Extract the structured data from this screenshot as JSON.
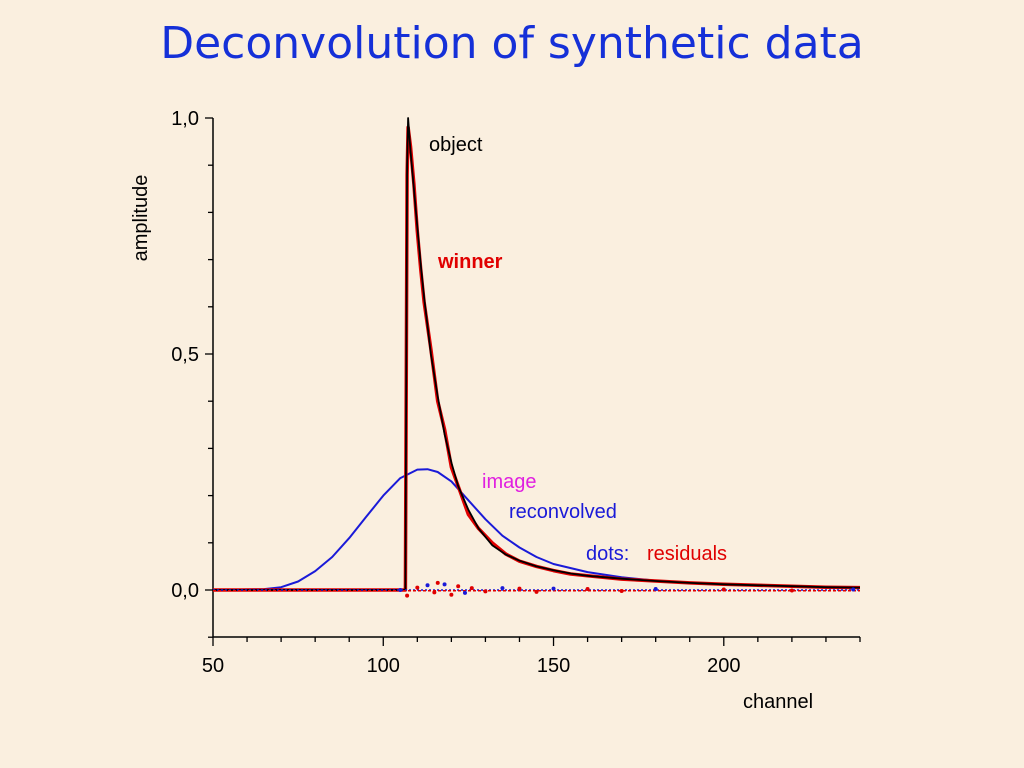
{
  "title": "Deconvolution of synthetic data",
  "chart_data": {
    "type": "line",
    "xlabel": "channel",
    "ylabel": "amplitude",
    "xlim": [
      50,
      240
    ],
    "ylim": [
      -0.1,
      1.0
    ],
    "xticks": [
      "50",
      "100",
      "150",
      "200"
    ],
    "xtick_values": [
      50,
      100,
      150,
      200
    ],
    "yticks": [
      "0,0",
      "0,5",
      "1,0"
    ],
    "ytick_values": [
      0.0,
      0.5,
      1.0
    ],
    "annotations": {
      "object": "object",
      "winner": "winner",
      "image": "image",
      "reconvolved": "reconvolved",
      "dots": "dots:",
      "residuals": "residuals"
    },
    "colors": {
      "object": "#000000",
      "winner": "#e00000",
      "image": "#e020e0",
      "reconvolved": "#1a1ad8",
      "residuals_red": "#e00000",
      "residuals_blue": "#1a1ad8"
    },
    "series": [
      {
        "key": "object",
        "x": [
          50,
          106,
          106.5,
          107,
          107.3,
          108,
          109,
          110,
          111,
          112,
          114,
          116,
          118,
          120,
          122,
          125,
          128,
          132,
          136,
          140,
          145,
          150,
          155,
          160,
          170,
          180,
          190,
          200,
          210,
          220,
          230,
          240
        ],
        "y": [
          0.0,
          0.0,
          0.0,
          0.9,
          1.0,
          0.93,
          0.85,
          0.77,
          0.69,
          0.62,
          0.5,
          0.41,
          0.33,
          0.27,
          0.22,
          0.17,
          0.13,
          0.095,
          0.075,
          0.062,
          0.05,
          0.042,
          0.035,
          0.03,
          0.024,
          0.019,
          0.015,
          0.012,
          0.01,
          0.008,
          0.006,
          0.005
        ]
      },
      {
        "key": "winner",
        "x": [
          50,
          106,
          106.5,
          107,
          107.3,
          108,
          109,
          110,
          111,
          112,
          114,
          116,
          118,
          120,
          122,
          125,
          128,
          132,
          136,
          140,
          145,
          150,
          155,
          160,
          170,
          180,
          190,
          200,
          210,
          220,
          230,
          240
        ],
        "y": [
          0.0,
          0.0,
          0.0,
          0.88,
          0.98,
          0.94,
          0.86,
          0.76,
          0.68,
          0.61,
          0.51,
          0.4,
          0.34,
          0.26,
          0.22,
          0.16,
          0.13,
          0.1,
          0.076,
          0.061,
          0.05,
          0.041,
          0.034,
          0.03,
          0.023,
          0.019,
          0.015,
          0.012,
          0.01,
          0.008,
          0.006,
          0.005
        ]
      },
      {
        "key": "reconvolved",
        "x": [
          50,
          65,
          70,
          75,
          80,
          85,
          90,
          95,
          100,
          105,
          110,
          113,
          116,
          120,
          125,
          130,
          135,
          140,
          145,
          150,
          160,
          170,
          180,
          190,
          200,
          220,
          240
        ],
        "y": [
          0.0,
          0.002,
          0.006,
          0.018,
          0.04,
          0.07,
          0.11,
          0.155,
          0.2,
          0.237,
          0.255,
          0.256,
          0.25,
          0.23,
          0.19,
          0.15,
          0.115,
          0.09,
          0.07,
          0.055,
          0.038,
          0.027,
          0.02,
          0.015,
          0.012,
          0.008,
          0.005
        ]
      }
    ],
    "residuals": {
      "x": [
        105,
        107,
        110,
        113,
        115,
        116,
        118,
        120,
        122,
        124,
        126,
        130,
        135,
        140,
        145,
        150,
        160,
        170,
        180,
        200,
        220,
        238
      ],
      "y": [
        0.0,
        -0.012,
        0.005,
        0.01,
        -0.005,
        0.015,
        0.012,
        -0.01,
        0.008,
        -0.006,
        0.004,
        -0.003,
        0.004,
        0.003,
        -0.004,
        0.003,
        0.002,
        -0.002,
        0.002,
        0.001,
        -0.001,
        0.001
      ]
    }
  }
}
